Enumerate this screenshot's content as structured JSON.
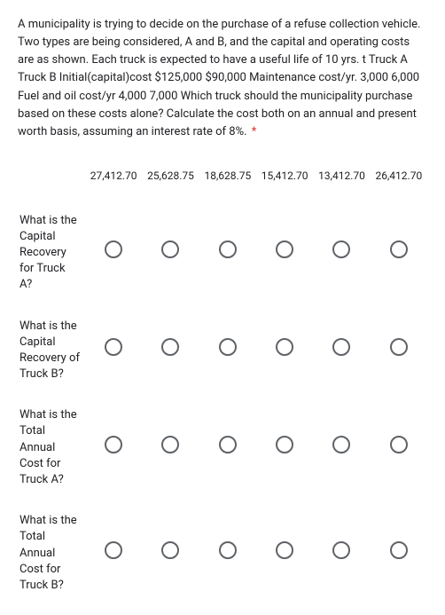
{
  "question": {
    "text": "A municipality is trying to decide on the purchase of a refuse collection vehicle. Two types are being considered, A and B, and the capital and operating costs are as shown. Each truck is expected to have a useful life of 10 yrs. t Truck A Truck B Initial(capital)cost $125,000 $90,000 Maintenance cost/yr. 3,000 6,000 Fuel and oil cost/yr 4,000 7,000 Which truck should the municipality purchase based on these costs alone? Calculate the cost both on an annual and present worth basis, assuming an interest rate of 8%.",
    "required_mark": "*"
  },
  "grid": {
    "columns": [
      "27,412.70",
      "25,628.75",
      "18,628.75",
      "15,412.70",
      "13,412.70",
      "26,412.70"
    ],
    "rows": [
      "What is the Capital Recovery for Truck A?",
      "What is the Capital Recovery of Truck B?",
      "What is the Total Annual Cost for Truck A?",
      "What is the Total Annual Cost for Truck B?"
    ]
  },
  "style": {
    "text_color": "#202124",
    "radio_border": "#5f6368",
    "required_color": "#d93025",
    "background": "#ffffff"
  }
}
